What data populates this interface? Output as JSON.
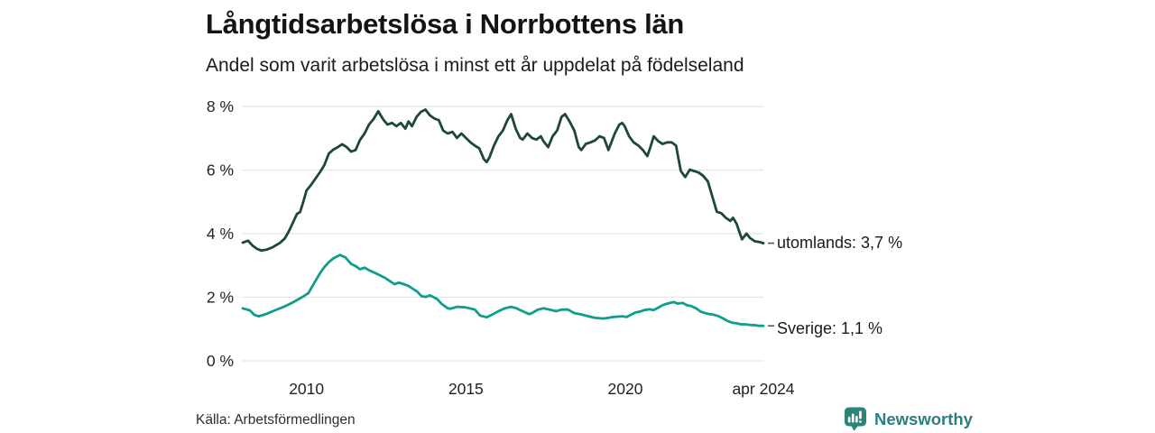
{
  "header": {
    "title": "Långtidsarbetslösa i Norrbottens län",
    "subtitle": "Andel som varit arbetslösa i minst ett år uppdelat på födelseland"
  },
  "footer": {
    "source": "Källa: Arbetsförmedlingen",
    "brand": "Newsworthy"
  },
  "colors": {
    "utomlands_line": "#1e453e",
    "sverige_line": "#0f9d8c",
    "grid": "#e4e4ea",
    "tick_text": "#222222",
    "end_dash": "#555555",
    "brand_teal": "#2e8577",
    "brand_text": "#2b7e80"
  },
  "chart_data": {
    "type": "line",
    "title": "Långtidsarbetslösa i Norrbottens län",
    "subtitle": "Andel som varit arbetslösa i minst ett år uppdelat på födelseland",
    "source": "Källa: Arbetsförmedlingen",
    "legend_position": "end-of-line-labels",
    "x": {
      "label": "",
      "range": [
        2008.0,
        2024.33
      ],
      "ticks": [
        {
          "v": 2010,
          "label": "2010"
        },
        {
          "v": 2015,
          "label": "2015"
        },
        {
          "v": 2020,
          "label": "2020"
        },
        {
          "v": 2024.33,
          "label": "apr 2024"
        }
      ]
    },
    "y": {
      "label": "",
      "range": [
        0,
        8
      ],
      "grid": true,
      "ticks": [
        {
          "v": 0,
          "label": "0 %"
        },
        {
          "v": 2,
          "label": "2 %"
        },
        {
          "v": 4,
          "label": "4 %"
        },
        {
          "v": 6,
          "label": "6 %"
        },
        {
          "v": 8,
          "label": "8 %"
        }
      ]
    },
    "series": [
      {
        "name": "utomlands",
        "end_label": "utomlands: 3,7 %",
        "last_value": 3.7,
        "color": "#1e453e",
        "points": [
          [
            2008.0,
            3.72
          ],
          [
            2008.17,
            3.78
          ],
          [
            2008.31,
            3.62
          ],
          [
            2008.45,
            3.52
          ],
          [
            2008.59,
            3.47
          ],
          [
            2008.76,
            3.5
          ],
          [
            2008.93,
            3.57
          ],
          [
            2009.07,
            3.65
          ],
          [
            2009.18,
            3.72
          ],
          [
            2009.32,
            3.85
          ],
          [
            2009.46,
            4.1
          ],
          [
            2009.6,
            4.4
          ],
          [
            2009.7,
            4.62
          ],
          [
            2009.8,
            4.68
          ],
          [
            2009.9,
            5.0
          ],
          [
            2010.0,
            5.36
          ],
          [
            2010.14,
            5.53
          ],
          [
            2010.28,
            5.73
          ],
          [
            2010.42,
            5.93
          ],
          [
            2010.56,
            6.16
          ],
          [
            2010.7,
            6.52
          ],
          [
            2010.84,
            6.64
          ],
          [
            2010.98,
            6.72
          ],
          [
            2011.12,
            6.81
          ],
          [
            2011.26,
            6.72
          ],
          [
            2011.4,
            6.58
          ],
          [
            2011.54,
            6.63
          ],
          [
            2011.68,
            6.95
          ],
          [
            2011.82,
            7.15
          ],
          [
            2011.96,
            7.43
          ],
          [
            2012.1,
            7.6
          ],
          [
            2012.25,
            7.85
          ],
          [
            2012.4,
            7.6
          ],
          [
            2012.54,
            7.43
          ],
          [
            2012.68,
            7.48
          ],
          [
            2012.82,
            7.38
          ],
          [
            2012.96,
            7.48
          ],
          [
            2013.1,
            7.3
          ],
          [
            2013.2,
            7.53
          ],
          [
            2013.31,
            7.38
          ],
          [
            2013.45,
            7.67
          ],
          [
            2013.59,
            7.83
          ],
          [
            2013.73,
            7.9
          ],
          [
            2013.87,
            7.72
          ],
          [
            2014.01,
            7.62
          ],
          [
            2014.15,
            7.57
          ],
          [
            2014.29,
            7.24
          ],
          [
            2014.43,
            7.15
          ],
          [
            2014.58,
            7.2
          ],
          [
            2014.72,
            7.01
          ],
          [
            2014.86,
            7.15
          ],
          [
            2015.0,
            7.01
          ],
          [
            2015.14,
            6.87
          ],
          [
            2015.28,
            6.77
          ],
          [
            2015.42,
            6.68
          ],
          [
            2015.56,
            6.35
          ],
          [
            2015.65,
            6.25
          ],
          [
            2015.74,
            6.4
          ],
          [
            2015.88,
            6.77
          ],
          [
            2016.02,
            7.06
          ],
          [
            2016.16,
            7.24
          ],
          [
            2016.3,
            7.57
          ],
          [
            2016.42,
            7.76
          ],
          [
            2016.56,
            7.3
          ],
          [
            2016.7,
            7.01
          ],
          [
            2016.78,
            6.96
          ],
          [
            2016.93,
            7.15
          ],
          [
            2017.07,
            7.01
          ],
          [
            2017.21,
            6.96
          ],
          [
            2017.35,
            7.06
          ],
          [
            2017.43,
            6.91
          ],
          [
            2017.58,
            6.72
          ],
          [
            2017.72,
            7.06
          ],
          [
            2017.86,
            7.24
          ],
          [
            2018.0,
            7.67
          ],
          [
            2018.11,
            7.76
          ],
          [
            2018.25,
            7.53
          ],
          [
            2018.4,
            7.24
          ],
          [
            2018.54,
            6.72
          ],
          [
            2018.62,
            6.63
          ],
          [
            2018.76,
            6.82
          ],
          [
            2018.91,
            6.87
          ],
          [
            2019.05,
            6.93
          ],
          [
            2019.19,
            7.06
          ],
          [
            2019.33,
            7.01
          ],
          [
            2019.47,
            6.63
          ],
          [
            2019.67,
            7.15
          ],
          [
            2019.81,
            7.43
          ],
          [
            2019.9,
            7.48
          ],
          [
            2019.98,
            7.38
          ],
          [
            2020.12,
            7.06
          ],
          [
            2020.26,
            6.87
          ],
          [
            2020.41,
            6.77
          ],
          [
            2020.55,
            6.63
          ],
          [
            2020.69,
            6.44
          ],
          [
            2020.8,
            6.77
          ],
          [
            2020.89,
            7.06
          ],
          [
            2021.03,
            6.91
          ],
          [
            2021.17,
            6.82
          ],
          [
            2021.31,
            6.87
          ],
          [
            2021.45,
            6.87
          ],
          [
            2021.59,
            6.77
          ],
          [
            2021.74,
            5.97
          ],
          [
            2021.88,
            5.78
          ],
          [
            2022.02,
            6.01
          ],
          [
            2022.16,
            5.97
          ],
          [
            2022.3,
            5.92
          ],
          [
            2022.44,
            5.82
          ],
          [
            2022.59,
            5.64
          ],
          [
            2022.73,
            5.16
          ],
          [
            2022.87,
            4.69
          ],
          [
            2023.01,
            4.64
          ],
          [
            2023.15,
            4.5
          ],
          [
            2023.29,
            4.4
          ],
          [
            2023.38,
            4.5
          ],
          [
            2023.49,
            4.31
          ],
          [
            2023.63,
            3.9
          ],
          [
            2023.66,
            3.82
          ],
          [
            2023.8,
            4.0
          ],
          [
            2023.91,
            3.86
          ],
          [
            2024.06,
            3.76
          ],
          [
            2024.2,
            3.74
          ],
          [
            2024.33,
            3.7
          ]
        ]
      },
      {
        "name": "Sverige",
        "end_label": "Sverige: 1,1 %",
        "last_value": 1.1,
        "color": "#0f9d8c",
        "points": [
          [
            2008.0,
            1.65
          ],
          [
            2008.22,
            1.59
          ],
          [
            2008.36,
            1.45
          ],
          [
            2008.5,
            1.4
          ],
          [
            2008.73,
            1.47
          ],
          [
            2009.01,
            1.59
          ],
          [
            2009.29,
            1.7
          ],
          [
            2009.58,
            1.84
          ],
          [
            2009.86,
            2.0
          ],
          [
            2010.06,
            2.13
          ],
          [
            2010.25,
            2.46
          ],
          [
            2010.42,
            2.75
          ],
          [
            2010.56,
            2.95
          ],
          [
            2010.7,
            3.1
          ],
          [
            2010.84,
            3.22
          ],
          [
            2011.05,
            3.33
          ],
          [
            2011.22,
            3.25
          ],
          [
            2011.4,
            3.05
          ],
          [
            2011.54,
            2.98
          ],
          [
            2011.68,
            2.88
          ],
          [
            2011.82,
            2.93
          ],
          [
            2011.96,
            2.85
          ],
          [
            2012.2,
            2.74
          ],
          [
            2012.48,
            2.6
          ],
          [
            2012.76,
            2.41
          ],
          [
            2012.9,
            2.46
          ],
          [
            2013.05,
            2.41
          ],
          [
            2013.19,
            2.36
          ],
          [
            2013.33,
            2.27
          ],
          [
            2013.47,
            2.18
          ],
          [
            2013.61,
            2.03
          ],
          [
            2013.75,
            2.01
          ],
          [
            2013.87,
            2.06
          ],
          [
            2014.01,
            1.99
          ],
          [
            2014.1,
            1.94
          ],
          [
            2014.24,
            1.79
          ],
          [
            2014.43,
            1.65
          ],
          [
            2014.52,
            1.64
          ],
          [
            2014.72,
            1.7
          ],
          [
            2015.0,
            1.68
          ],
          [
            2015.28,
            1.61
          ],
          [
            2015.45,
            1.42
          ],
          [
            2015.65,
            1.37
          ],
          [
            2015.85,
            1.47
          ],
          [
            2016.02,
            1.56
          ],
          [
            2016.22,
            1.65
          ],
          [
            2016.42,
            1.7
          ],
          [
            2016.59,
            1.65
          ],
          [
            2016.78,
            1.56
          ],
          [
            2016.98,
            1.47
          ],
          [
            2017.07,
            1.5
          ],
          [
            2017.26,
            1.61
          ],
          [
            2017.43,
            1.65
          ],
          [
            2017.63,
            1.61
          ],
          [
            2017.83,
            1.56
          ],
          [
            2018.0,
            1.61
          ],
          [
            2018.2,
            1.61
          ],
          [
            2018.4,
            1.5
          ],
          [
            2018.57,
            1.47
          ],
          [
            2018.76,
            1.42
          ],
          [
            2019.05,
            1.35
          ],
          [
            2019.33,
            1.33
          ],
          [
            2019.62,
            1.38
          ],
          [
            2019.9,
            1.4
          ],
          [
            2020.04,
            1.38
          ],
          [
            2020.18,
            1.45
          ],
          [
            2020.32,
            1.52
          ],
          [
            2020.46,
            1.55
          ],
          [
            2020.61,
            1.6
          ],
          [
            2020.75,
            1.62
          ],
          [
            2020.89,
            1.6
          ],
          [
            2021.03,
            1.67
          ],
          [
            2021.17,
            1.75
          ],
          [
            2021.31,
            1.8
          ],
          [
            2021.51,
            1.85
          ],
          [
            2021.65,
            1.8
          ],
          [
            2021.79,
            1.82
          ],
          [
            2021.93,
            1.75
          ],
          [
            2022.07,
            1.72
          ],
          [
            2022.22,
            1.65
          ],
          [
            2022.36,
            1.55
          ],
          [
            2022.5,
            1.5
          ],
          [
            2022.64,
            1.47
          ],
          [
            2022.78,
            1.45
          ],
          [
            2022.93,
            1.4
          ],
          [
            2023.07,
            1.33
          ],
          [
            2023.21,
            1.25
          ],
          [
            2023.35,
            1.2
          ],
          [
            2023.49,
            1.18
          ],
          [
            2023.63,
            1.15
          ],
          [
            2023.77,
            1.15
          ],
          [
            2023.91,
            1.13
          ],
          [
            2024.06,
            1.12
          ],
          [
            2024.2,
            1.1
          ],
          [
            2024.33,
            1.1
          ]
        ]
      }
    ]
  }
}
